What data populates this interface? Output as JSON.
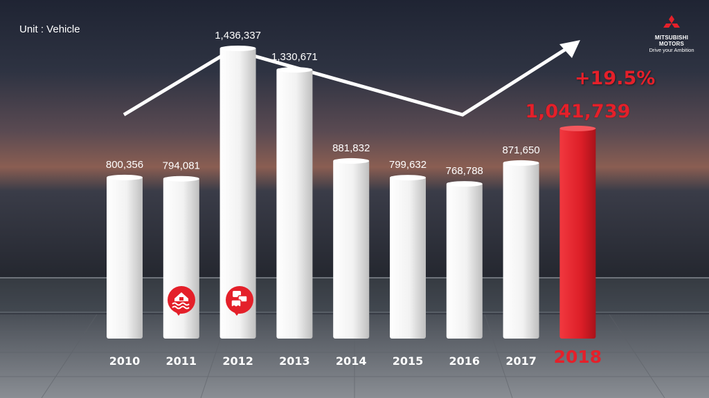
{
  "header": {
    "unit_label": "Unit : Vehicle"
  },
  "brand": {
    "logo_icon": "three-diamond-logo-icon",
    "name_line1": "MITSUBISHI",
    "name_line2": "MOTORS",
    "tagline": "Drive your Ambition"
  },
  "highlight": {
    "growth_label": "+19.5%"
  },
  "colors": {
    "highlight": "#e4202a",
    "bar_default": "#f0f0f0",
    "text": "#ffffff"
  },
  "chart_data": {
    "type": "bar",
    "categories": [
      "2010",
      "2011",
      "2012",
      "2013",
      "2014",
      "2015",
      "2016",
      "2017",
      "2018"
    ],
    "values": [
      800356,
      794081,
      1436337,
      1330671,
      881832,
      799632,
      768788,
      871650,
      1041739
    ],
    "value_labels": [
      "800,356",
      "794,081",
      "1,436,337",
      "1,330,671",
      "881,832",
      "799,632",
      "768,788",
      "871,650",
      "1,041,739"
    ],
    "highlight_category": "2018",
    "ylim": [
      0,
      1436337
    ],
    "grid": false,
    "legend": "none",
    "event_icons": [
      {
        "category": "2011",
        "icon": "flood-icon"
      },
      {
        "category": "2012",
        "icon": "car-traffic-icon"
      }
    ],
    "trend_arrow": {
      "points": [
        "2010",
        "2012",
        "2016"
      ],
      "direction": "up",
      "icon": "trend-arrow-icon"
    }
  }
}
